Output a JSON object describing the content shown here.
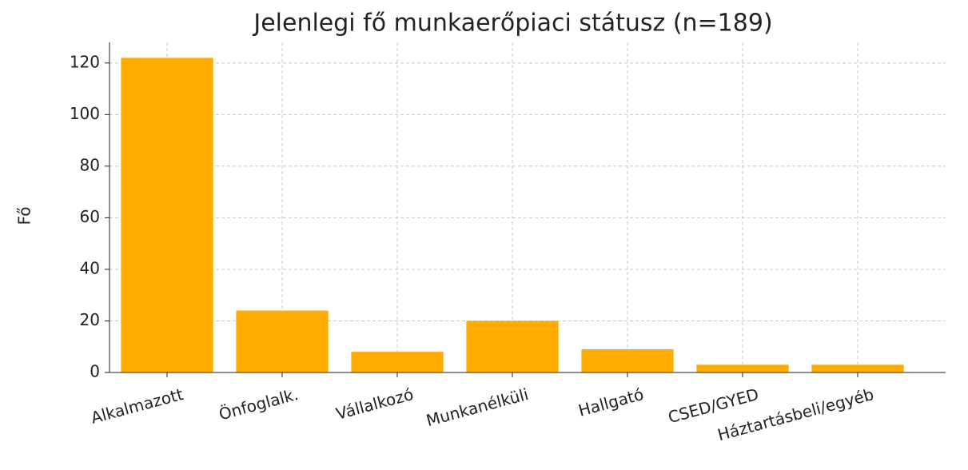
{
  "chart_data": {
    "type": "bar",
    "title": "Jelenlegi fő munkaerőpiaci státusz (n=189)",
    "ylabel": "Fő",
    "categories": [
      "Alkalmazott",
      "Önfoglalk.",
      "Vállalkozó",
      "Munkanélküli",
      "Hallgató",
      "CSED/GYED",
      "Háztartásbeli/egyéb"
    ],
    "values": [
      122,
      24,
      8,
      20,
      9,
      3,
      3
    ],
    "color": "#ffab00",
    "ylim": [
      0,
      128
    ],
    "yticks": [
      0,
      20,
      40,
      60,
      80,
      100,
      120
    ],
    "grid": true
  }
}
